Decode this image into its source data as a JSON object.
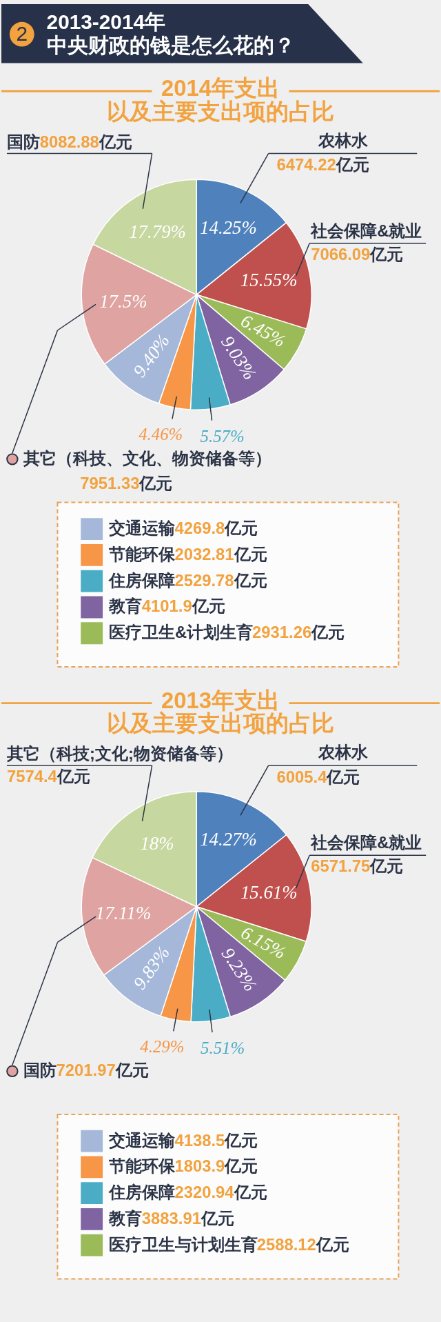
{
  "chart_data": [
    {
      "type": "pie",
      "title": "2013-2014年中央财政的钱是怎么花的？",
      "subtitle": "2014年支出以及主要支出项的占比",
      "categories": [
        "农林水",
        "社会保障&就业",
        "医疗卫生&计划生育",
        "教育",
        "住房保障",
        "节能环保",
        "交通运输",
        "其它（科技、文化、物资储备等）",
        "国防"
      ],
      "values": [
        6474.22,
        7066.09,
        2931.26,
        4101.9,
        2529.78,
        2032.81,
        4269.8,
        7951.33,
        8082.88
      ],
      "colors": [
        "#4f81bd",
        "#c0504d",
        "#9bbb59",
        "#8064a2",
        "#4bacc6",
        "#f79646",
        "#a5b8d9",
        "#dfa3a1",
        "#c6d7a0"
      ],
      "value_labels": [
        "6474.22亿元",
        "7066.09亿元",
        "2931.26亿元",
        "4101.9亿元",
        "2529.78亿元",
        "2032.81亿元",
        "4269.8亿元",
        "7951.33亿元",
        "8082.88亿元"
      ],
      "annotations": [
        "14.25%",
        "15.55%",
        "6.45%",
        "9.03%",
        "5.57%",
        "4.46%",
        "9.40%",
        "17.5%",
        "17.79%",
        "2"
      ],
      "legend": "bottom"
    },
    {
      "type": "pie",
      "title": "2013年支出以及主要支出项的占比",
      "categories": [
        "农林水",
        "社会保障&就业",
        "医疗卫生与计划生育",
        "教育",
        "住房保障",
        "节能环保",
        "交通运输",
        "国防",
        "其它（科技;文化;物资储备等）"
      ],
      "values": [
        6005.4,
        6571.75,
        2588.12,
        3883.91,
        2320.94,
        1803.9,
        4138.5,
        7201.97,
        7574.4
      ],
      "colors": [
        "#4f81bd",
        "#c0504d",
        "#9bbb59",
        "#8064a2",
        "#4bacc6",
        "#f79646",
        "#a5b8d9",
        "#dfa3a1",
        "#c6d7a0"
      ],
      "value_labels": [
        "6005.4亿元",
        "6571.75亿元",
        "2588.12亿元",
        "3883.91亿元",
        "2320.94亿元",
        "1803.9亿元",
        "4138.5亿元",
        "7201.97亿元",
        "7574.4亿元"
      ],
      "annotations": [
        "14.27%",
        "15.61%",
        "6.15%",
        "9.23%",
        "5.51%",
        "4.29%",
        "9.83%",
        "17.11%",
        "18%"
      ],
      "legend": "bottom"
    }
  ]
}
